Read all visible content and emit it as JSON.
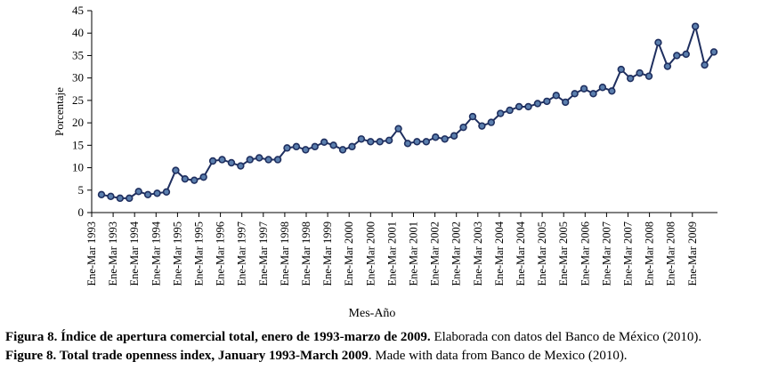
{
  "chart_data": {
    "type": "line",
    "ylabel": "Porcentaje",
    "xlabel": "Mes-Año",
    "ylim": [
      0,
      45
    ],
    "yticks": [
      0,
      5,
      10,
      15,
      20,
      25,
      30,
      35,
      40,
      45
    ],
    "xticks": [
      "Ene-Mar 1993",
      "Ene-Mar 1993",
      "Ene-Mar 1994",
      "Ene-Mar 1994",
      "Ene-Mar 1995",
      "Ene-Mar 1995",
      "Ene-Mar 1996",
      "Ene-Mar 1997",
      "Ene-Mar 1997",
      "Ene-Mar 1998",
      "Ene-Mar 1998",
      "Ene-Mar 1999",
      "Ene-Mar 2000",
      "Ene-Mar 2000",
      "Ene-Mar 2001",
      "Ene-Mar 2001",
      "Ene-Mar 2002",
      "Ene-Mar 2002",
      "Ene-Mar 2003",
      "Ene-Mar 2004",
      "Ene-Mar 2004",
      "Ene-Mar 2005",
      "Ene-Mar 2005",
      "Ene-Mar 2006",
      "Ene-Mar 2007",
      "Ene-Mar 2007",
      "Ene-Mar 2008",
      "Ene-Mar 2008",
      "Ene-Mar 2009"
    ],
    "series": [
      {
        "name": "Índice de apertura comercial total",
        "color": "#1f2f5f",
        "marker_color": "#5b7fae",
        "values": [
          4.0,
          3.6,
          3.2,
          3.2,
          4.7,
          4.0,
          4.3,
          4.6,
          9.4,
          7.5,
          7.2,
          7.9,
          11.5,
          11.8,
          11.1,
          10.4,
          11.8,
          12.2,
          11.8,
          11.8,
          14.4,
          14.7,
          14.0,
          14.7,
          15.7,
          15.0,
          14.0,
          14.7,
          16.4,
          15.8,
          15.8,
          16.1,
          18.7,
          15.4,
          15.8,
          15.8,
          16.8,
          16.4,
          17.1,
          19.0,
          21.4,
          19.3,
          20.1,
          22.1,
          22.8,
          23.6,
          23.6,
          24.3,
          24.8,
          26.1,
          24.6,
          26.5,
          27.6,
          26.5,
          27.9,
          27.1,
          31.9,
          29.9,
          31.1,
          30.4,
          37.9,
          32.6,
          35.0,
          35.3,
          41.5,
          32.9,
          35.8
        ]
      }
    ]
  },
  "captions": {
    "spanish_bold": "Figura 8. Índice de apertura comercial total, enero de 1993-marzo de 2009.",
    "spanish_rest": " Elaborada con datos del Banco de México (2010).",
    "english_bold": "Figure 8. Total trade openness index, January 1993-March 2009",
    "english_rest": ". Made with data from Banco de Mexico (2010)."
  }
}
